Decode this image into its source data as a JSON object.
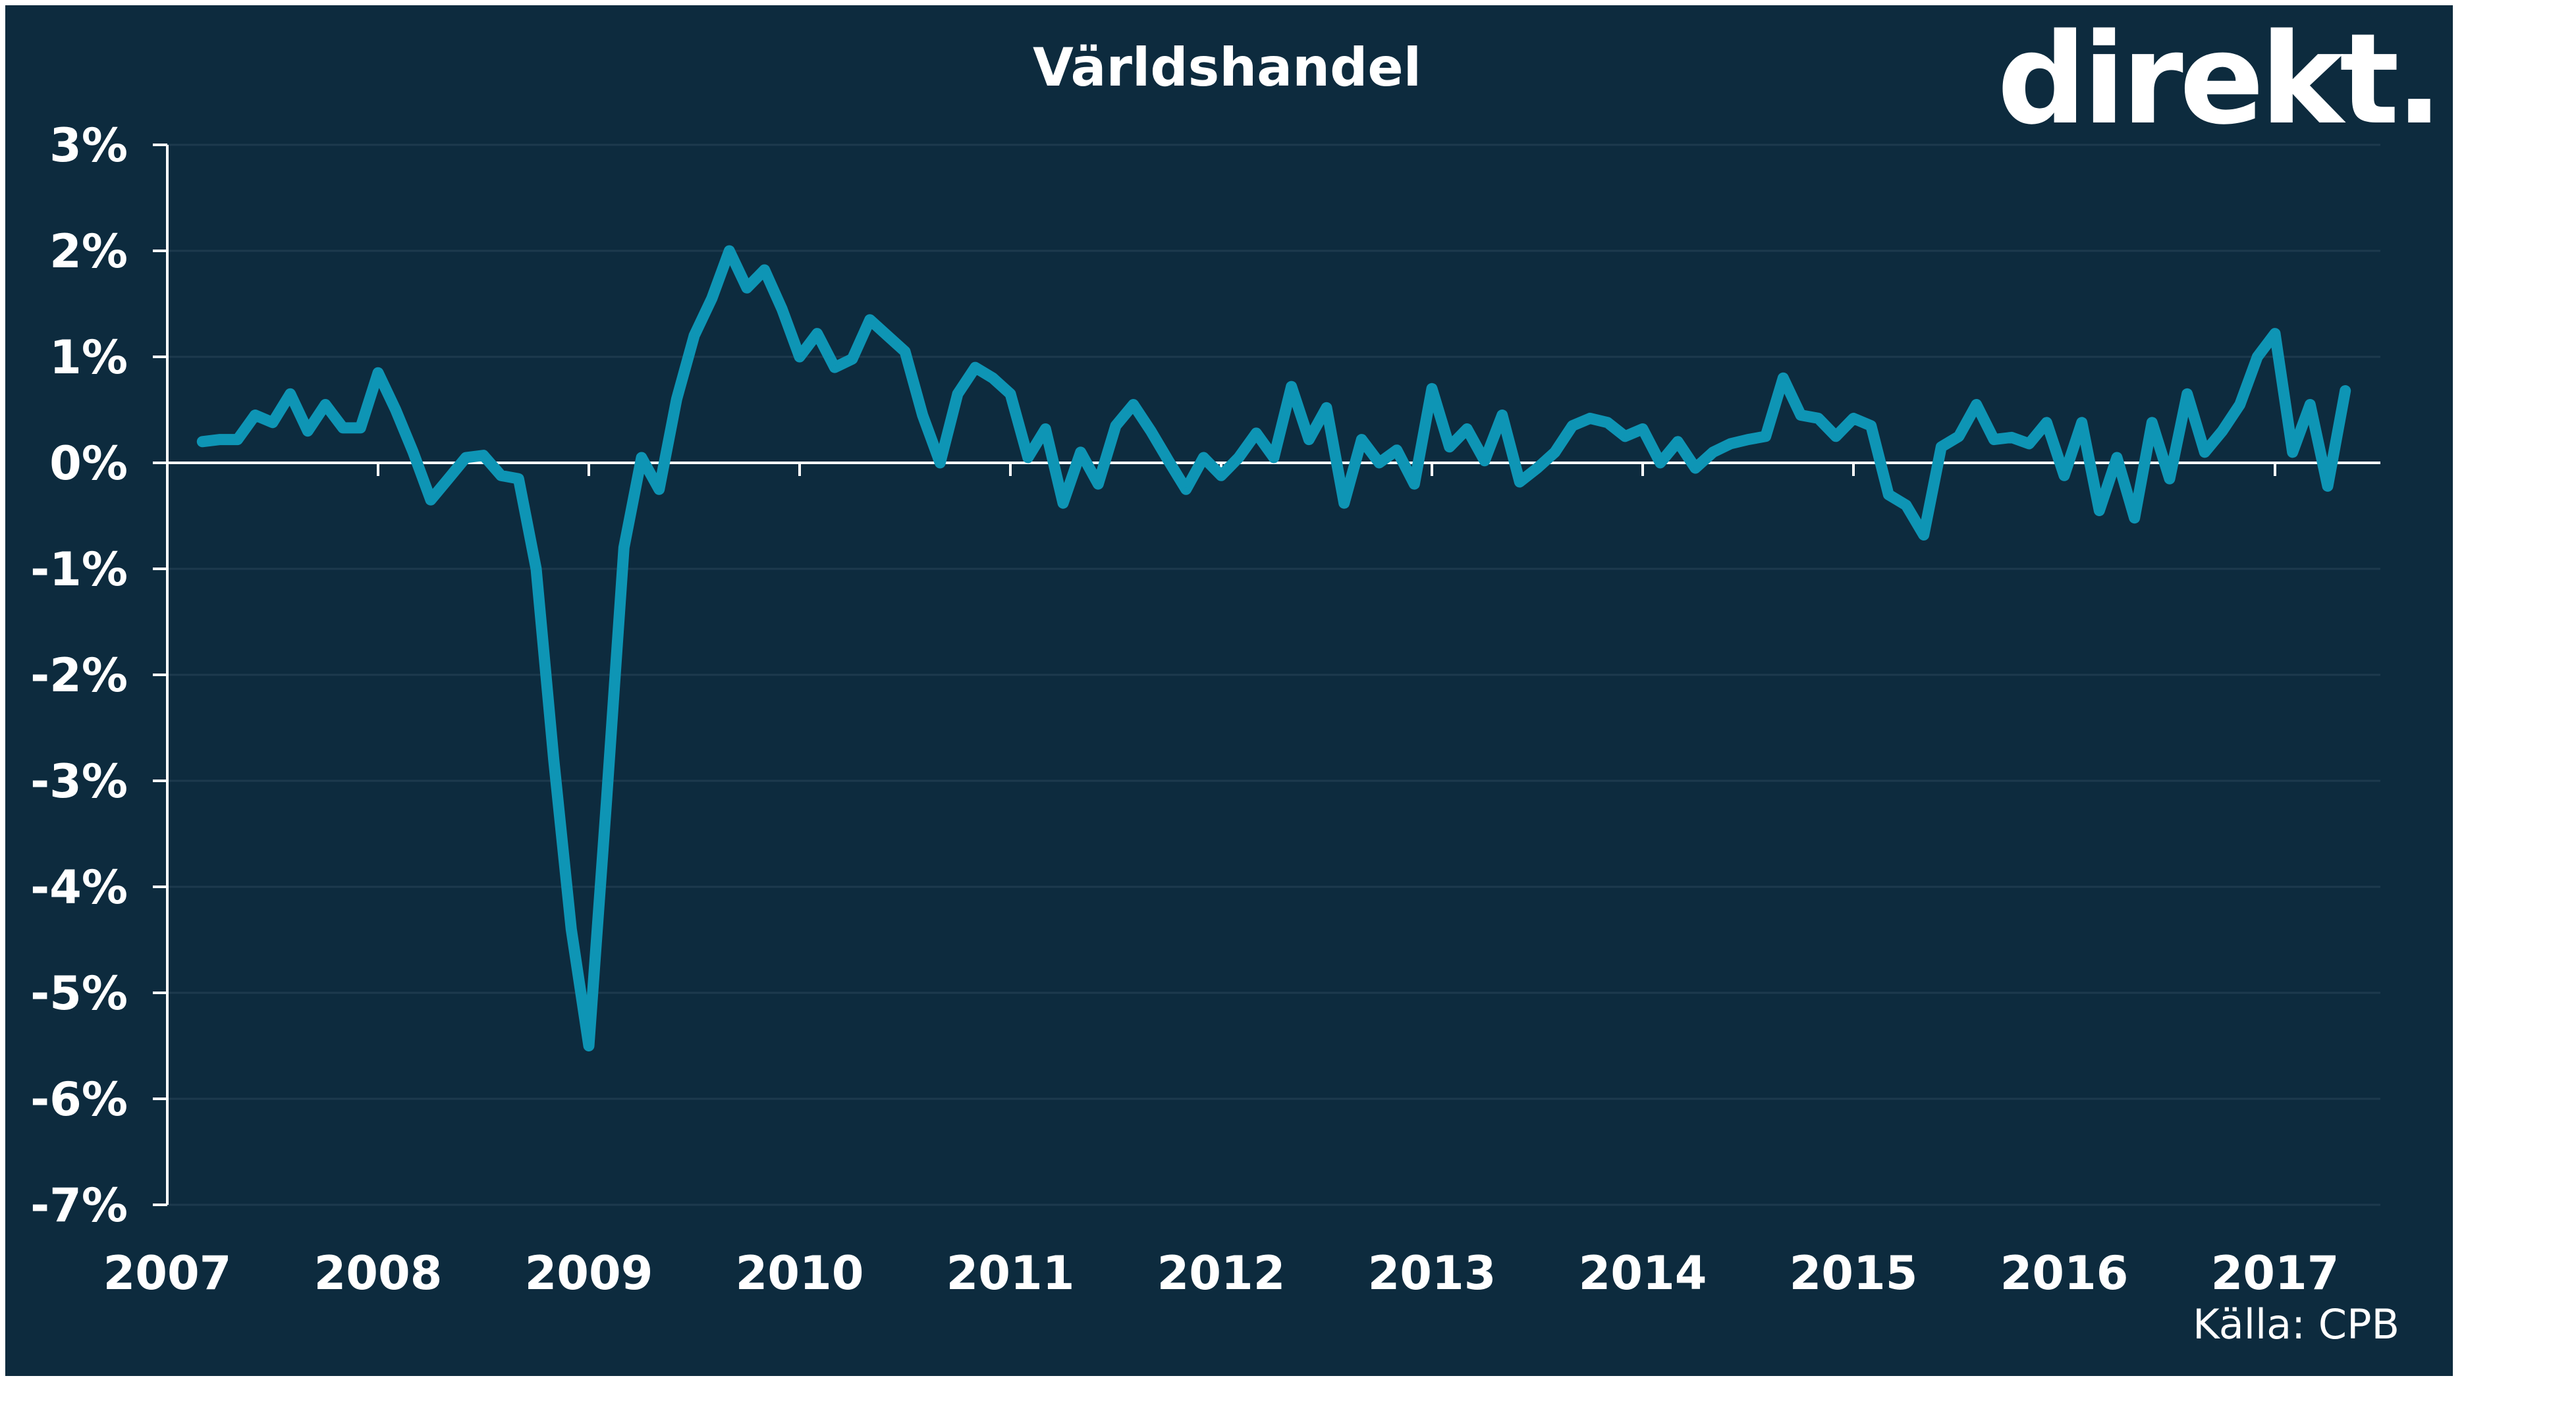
{
  "chart_data": {
    "type": "line",
    "title": "Världshandel",
    "brand_logo": "direkt.",
    "source_note": "Källa: CPB",
    "xlabel": "",
    "ylabel": "",
    "x_ticks": [
      "2007",
      "2008",
      "2009",
      "2010",
      "2011",
      "2012",
      "2013",
      "2014",
      "2015",
      "2016",
      "2017"
    ],
    "y_ticks": [
      "3%",
      "2%",
      "1%",
      "0%",
      "-1%",
      "-2%",
      "-3%",
      "-4%",
      "-5%",
      "-6%",
      "-7%"
    ],
    "xlim": [
      2007,
      2017.5
    ],
    "ylim": [
      -7,
      3
    ],
    "grid": true,
    "colors": {
      "background": "#0d2b3e",
      "line": "#0e95b5",
      "text": "#ffffff",
      "grid": "#1d3a4d"
    },
    "series": [
      {
        "x": [
          "2007-03",
          "2007-04",
          "2007-05",
          "2007-06",
          "2007-07",
          "2007-08",
          "2007-09",
          "2007-10",
          "2007-11",
          "2007-12",
          "2008-01",
          "2008-02",
          "2008-03",
          "2008-04",
          "2008-05",
          "2008-06",
          "2008-07",
          "2008-08",
          "2008-09",
          "2008-10",
          "2008-11",
          "2008-12",
          "2009-01",
          "2009-02",
          "2009-03",
          "2009-04",
          "2009-05",
          "2009-06",
          "2009-07",
          "2009-08",
          "2009-09",
          "2009-10",
          "2009-11",
          "2009-12",
          "2010-01",
          "2010-02",
          "2010-03",
          "2010-04",
          "2010-05",
          "2010-06",
          "2010-07",
          "2010-08",
          "2010-09",
          "2010-10",
          "2010-11",
          "2010-12",
          "2011-01",
          "2011-02",
          "2011-03",
          "2011-04",
          "2011-05",
          "2011-06",
          "2011-07",
          "2011-08",
          "2011-09",
          "2011-10",
          "2011-11",
          "2011-12",
          "2012-01",
          "2012-02",
          "2012-03",
          "2012-04",
          "2012-05",
          "2012-06",
          "2012-07",
          "2012-08",
          "2012-09",
          "2012-10",
          "2012-11",
          "2012-12",
          "2013-01",
          "2013-02",
          "2013-03",
          "2013-04",
          "2013-05",
          "2013-06",
          "2013-07",
          "2013-08",
          "2013-09",
          "2013-10",
          "2013-11",
          "2013-12",
          "2014-01",
          "2014-02",
          "2014-03",
          "2014-04",
          "2014-05",
          "2014-06",
          "2014-07",
          "2014-08",
          "2014-09",
          "2014-10",
          "2014-11",
          "2014-12",
          "2015-01",
          "2015-02",
          "2015-03",
          "2015-04",
          "2015-05",
          "2015-06",
          "2015-07",
          "2015-08",
          "2015-09",
          "2015-10",
          "2015-11",
          "2015-12",
          "2016-01",
          "2016-02",
          "2016-03",
          "2016-04",
          "2016-05",
          "2016-06",
          "2016-07",
          "2016-08",
          "2016-09",
          "2016-10",
          "2016-11",
          "2016-12",
          "2017-01",
          "2017-02",
          "2017-03",
          "2017-04",
          "2017-05"
        ],
        "values": [
          0.2,
          0.22,
          0.22,
          0.45,
          0.38,
          0.65,
          0.3,
          0.55,
          0.33,
          0.33,
          0.85,
          0.5,
          0.1,
          -0.35,
          -0.15,
          0.05,
          0.07,
          -0.12,
          -0.15,
          -1.0,
          -2.8,
          -4.4,
          -5.5,
          -3.2,
          -0.8,
          0.05,
          -0.25,
          0.6,
          1.2,
          1.55,
          2.0,
          1.65,
          1.82,
          1.45,
          1.0,
          1.22,
          0.9,
          0.98,
          1.35,
          1.2,
          1.05,
          0.45,
          0.0,
          0.65,
          0.9,
          0.8,
          0.65,
          0.05,
          0.32,
          -0.38,
          0.1,
          -0.2,
          0.35,
          0.55,
          0.3,
          0.02,
          -0.25,
          0.05,
          -0.12,
          0.05,
          0.28,
          0.05,
          0.72,
          0.22,
          0.52,
          -0.38,
          0.22,
          0.0,
          0.12,
          -0.2,
          0.7,
          0.15,
          0.32,
          0.02,
          0.45,
          -0.18,
          -0.05,
          0.1,
          0.35,
          0.42,
          0.38,
          0.25,
          0.32,
          0.0,
          0.2,
          -0.05,
          0.1,
          0.18,
          0.22,
          0.25,
          0.8,
          0.45,
          0.42,
          0.25,
          0.42,
          0.35,
          -0.3,
          -0.4,
          -0.68,
          0.15,
          0.25,
          0.55,
          0.22,
          0.24,
          0.18,
          0.38,
          -0.12,
          0.38,
          -0.45,
          0.05,
          -0.52,
          0.38,
          -0.15,
          0.65,
          0.1,
          0.3,
          0.55,
          1.0,
          1.22,
          0.1,
          0.55,
          -0.22,
          0.68
        ]
      }
    ]
  }
}
